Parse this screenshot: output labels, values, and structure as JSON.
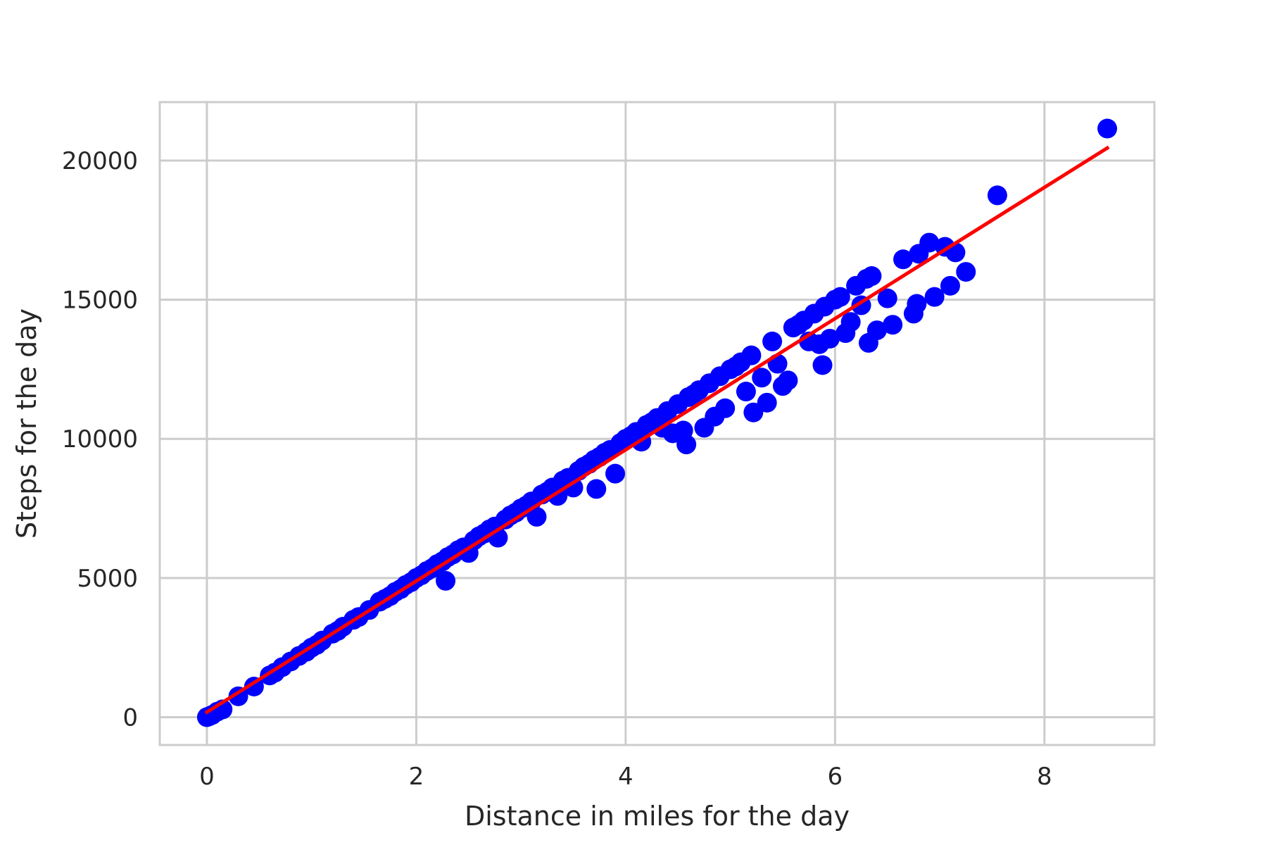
{
  "chart_data": {
    "type": "scatter",
    "xlabel": "Distance in miles for the day",
    "ylabel": "Steps for the day",
    "xlim": [
      -0.45,
      9.05
    ],
    "ylim": [
      -1000,
      22100
    ],
    "xticks": [
      0,
      2,
      4,
      6,
      8
    ],
    "yticks": [
      0,
      5000,
      10000,
      15000,
      20000
    ],
    "grid": true,
    "colors": {
      "points": "#0000ff",
      "fit_line": "#ff0000",
      "grid": "#cccccc"
    },
    "series": [
      {
        "kind": "points",
        "points": [
          [
            0,
            0
          ],
          [
            0.02,
            30
          ],
          [
            0.05,
            80
          ],
          [
            0.1,
            200
          ],
          [
            0.15,
            280
          ],
          [
            0.3,
            750
          ],
          [
            0.45,
            1100
          ],
          [
            0.6,
            1500
          ],
          [
            0.65,
            1600
          ],
          [
            0.72,
            1800
          ],
          [
            0.8,
            2000
          ],
          [
            0.88,
            2200
          ],
          [
            0.95,
            2350
          ],
          [
            1.0,
            2500
          ],
          [
            1.05,
            2600
          ],
          [
            1.1,
            2750
          ],
          [
            1.2,
            3000
          ],
          [
            1.25,
            3100
          ],
          [
            1.3,
            3250
          ],
          [
            1.4,
            3500
          ],
          [
            1.45,
            3600
          ],
          [
            1.55,
            3850
          ],
          [
            1.65,
            4150
          ],
          [
            1.7,
            4250
          ],
          [
            1.75,
            4350
          ],
          [
            1.8,
            4500
          ],
          [
            1.85,
            4600
          ],
          [
            1.9,
            4750
          ],
          [
            1.95,
            4850
          ],
          [
            2.0,
            5000
          ],
          [
            2.05,
            5100
          ],
          [
            2.1,
            5250
          ],
          [
            2.15,
            5350
          ],
          [
            2.2,
            5500
          ],
          [
            2.25,
            5600
          ],
          [
            2.28,
            4900
          ],
          [
            2.3,
            5750
          ],
          [
            2.35,
            5850
          ],
          [
            2.4,
            6000
          ],
          [
            2.45,
            6100
          ],
          [
            2.5,
            5900
          ],
          [
            2.55,
            6350
          ],
          [
            2.6,
            6500
          ],
          [
            2.65,
            6600
          ],
          [
            2.7,
            6750
          ],
          [
            2.75,
            6850
          ],
          [
            2.78,
            6450
          ],
          [
            2.85,
            7100
          ],
          [
            2.9,
            7250
          ],
          [
            2.95,
            7350
          ],
          [
            3.0,
            7500
          ],
          [
            3.05,
            7600
          ],
          [
            3.1,
            7750
          ],
          [
            3.15,
            7200
          ],
          [
            3.2,
            8000
          ],
          [
            3.25,
            8100
          ],
          [
            3.3,
            8250
          ],
          [
            3.35,
            7950
          ],
          [
            3.4,
            8500
          ],
          [
            3.45,
            8600
          ],
          [
            3.5,
            8250
          ],
          [
            3.55,
            8850
          ],
          [
            3.6,
            9000
          ],
          [
            3.65,
            9100
          ],
          [
            3.7,
            9250
          ],
          [
            3.72,
            8200
          ],
          [
            3.75,
            9350
          ],
          [
            3.8,
            9500
          ],
          [
            3.85,
            9600
          ],
          [
            3.9,
            8750
          ],
          [
            3.95,
            9850
          ],
          [
            4.0,
            10000
          ],
          [
            4.05,
            10100
          ],
          [
            4.1,
            10250
          ],
          [
            4.15,
            9900
          ],
          [
            4.2,
            10500
          ],
          [
            4.25,
            10600
          ],
          [
            4.3,
            10750
          ],
          [
            4.35,
            10400
          ],
          [
            4.4,
            11000
          ],
          [
            4.45,
            10200
          ],
          [
            4.5,
            11250
          ],
          [
            4.55,
            10300
          ],
          [
            4.58,
            9800
          ],
          [
            4.6,
            11500
          ],
          [
            4.65,
            11600
          ],
          [
            4.7,
            11750
          ],
          [
            4.75,
            10400
          ],
          [
            4.8,
            12000
          ],
          [
            4.85,
            10800
          ],
          [
            4.9,
            12250
          ],
          [
            4.95,
            11100
          ],
          [
            5.0,
            12500
          ],
          [
            5.05,
            12600
          ],
          [
            5.1,
            12750
          ],
          [
            5.15,
            11700
          ],
          [
            5.2,
            13000
          ],
          [
            5.22,
            10950
          ],
          [
            5.3,
            12200
          ],
          [
            5.35,
            11300
          ],
          [
            5.4,
            13500
          ],
          [
            5.45,
            12700
          ],
          [
            5.5,
            11900
          ],
          [
            5.55,
            12100
          ],
          [
            5.6,
            14000
          ],
          [
            5.65,
            14100
          ],
          [
            5.7,
            14250
          ],
          [
            5.75,
            13500
          ],
          [
            5.8,
            14500
          ],
          [
            5.85,
            13400
          ],
          [
            5.88,
            12650
          ],
          [
            5.9,
            14750
          ],
          [
            5.95,
            13600
          ],
          [
            6.0,
            15000
          ],
          [
            6.05,
            15100
          ],
          [
            6.1,
            13800
          ],
          [
            6.15,
            14200
          ],
          [
            6.2,
            15500
          ],
          [
            6.25,
            14800
          ],
          [
            6.3,
            15750
          ],
          [
            6.32,
            13450
          ],
          [
            6.35,
            15850
          ],
          [
            6.4,
            13900
          ],
          [
            6.5,
            15050
          ],
          [
            6.55,
            14100
          ],
          [
            6.65,
            16450
          ],
          [
            6.75,
            14500
          ],
          [
            6.78,
            14850
          ],
          [
            6.8,
            16650
          ],
          [
            6.9,
            17050
          ],
          [
            6.95,
            15100
          ],
          [
            7.05,
            16900
          ],
          [
            7.1,
            15500
          ],
          [
            7.15,
            16700
          ],
          [
            7.25,
            16000
          ],
          [
            7.55,
            18750
          ],
          [
            8.6,
            21150
          ]
        ]
      },
      {
        "kind": "fit_line",
        "points": [
          [
            0,
            180
          ],
          [
            8.6,
            20450
          ]
        ]
      }
    ]
  }
}
